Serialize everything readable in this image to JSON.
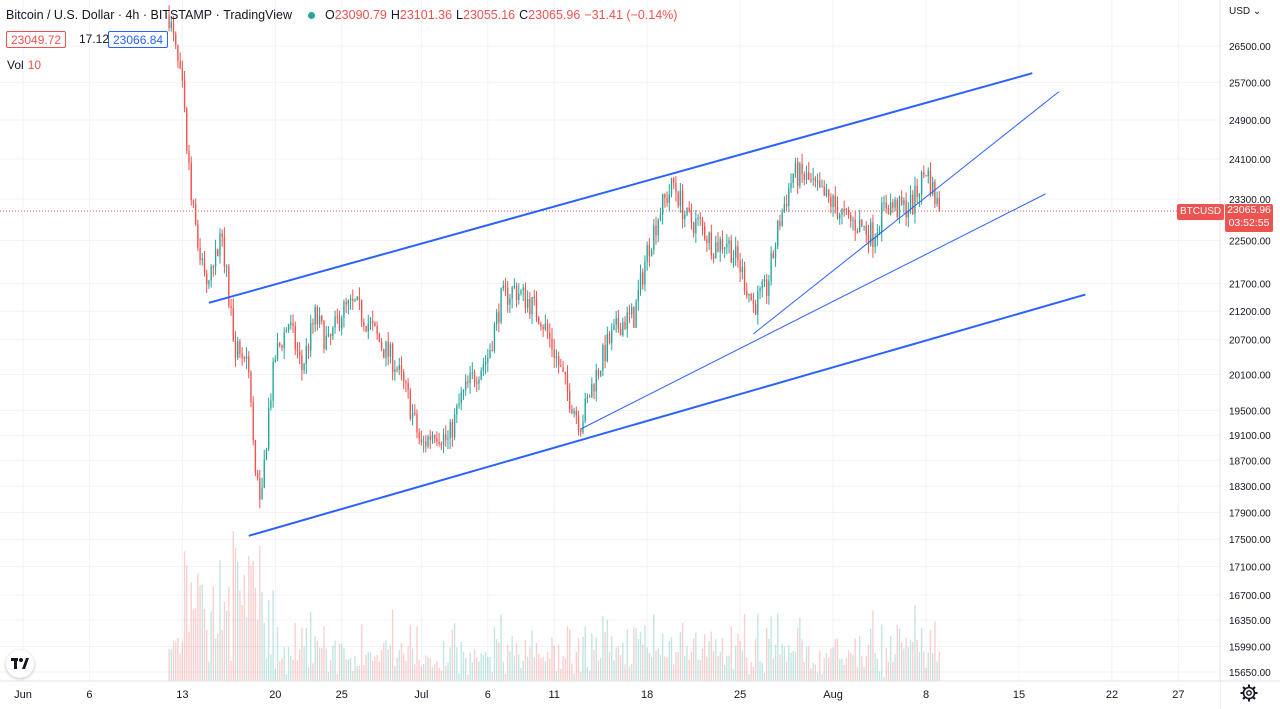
{
  "header": {
    "symbol": "Bitcoin / U.S. Dollar",
    "interval": "4h",
    "exchange": "BITSTAMP",
    "source": "TradingView",
    "ohlc": {
      "o_label": "O",
      "o": "23090.79",
      "h_label": "H",
      "h": "23101.36",
      "l_label": "L",
      "l": "23055.16",
      "c_label": "C",
      "c": "23065.96",
      "change": "−31.41 (−0.14%)"
    },
    "bid": "23049.72",
    "spread": "17.12",
    "ask": "23066.84",
    "volume_label": "Vol",
    "volume_value": "10"
  },
  "price_axis": {
    "currency": "USD",
    "currency_icon": "chevron-down-icon"
  },
  "last_price_tag": {
    "symbol": "BTCUSD",
    "price": "23065.96",
    "countdown": "03:52:55"
  },
  "colors": {
    "up": "#26a69a",
    "down": "#ef5350",
    "trendline": "#2962ff",
    "grid": "#f0f3fa",
    "axis_text": "#131722"
  },
  "chart_data": {
    "type": "candlestick",
    "title": "Bitcoin / U.S. Dollar · 4h · BITSTAMP",
    "x_ticks": [
      "Jun",
      "6",
      "13",
      "20",
      "25",
      "Jul",
      "6",
      "11",
      "18",
      "25",
      "Aug",
      "8",
      "15",
      "22",
      "27"
    ],
    "y_ticks": [
      26500,
      25700,
      24900,
      24100,
      23300,
      22500,
      21700,
      21200,
      20700,
      20100,
      19500,
      19100,
      18700,
      18300,
      17900,
      17500,
      17100,
      16700,
      16350,
      15990,
      15650
    ],
    "y_tick_labels": [
      "26500.00",
      "25700.00",
      "24900.00",
      "24100.00",
      "23300.00",
      "22500.00",
      "21700.00",
      "21200.00",
      "20700.00",
      "20100.00",
      "19500.00",
      "19100.00",
      "18700.00",
      "18300.00",
      "17900.00",
      "17500.00",
      "17100.00",
      "16700.00",
      "16350.00",
      "15990.00",
      "15650.00"
    ],
    "y_scale": "log",
    "ylim": [
      15450,
      27300
    ],
    "last_price": 23065.96,
    "grid": true,
    "price_path": [
      [
        "Jun 12",
        27200
      ],
      [
        "Jun 13",
        25500
      ],
      [
        "Jun 13 12:00",
        23800
      ],
      [
        "Jun 14",
        22600
      ],
      [
        "Jun 15",
        21600
      ],
      [
        "Jun 16",
        22700
      ],
      [
        "Jun 16 12:00",
        21400
      ],
      [
        "Jun 17",
        20600
      ],
      [
        "Jun 18",
        20300
      ],
      [
        "Jun 18 12:00",
        18400
      ],
      [
        "Jun 19",
        18200
      ],
      [
        "Jun 19 12:00",
        19500
      ],
      [
        "Jun 20",
        20400
      ],
      [
        "Jun 21",
        21000
      ],
      [
        "Jun 22",
        20200
      ],
      [
        "Jun 23",
        21100
      ],
      [
        "Jun 24",
        20600
      ],
      [
        "Jun 25",
        21200
      ],
      [
        "Jun 26",
        21300
      ],
      [
        "Jun 27",
        21000
      ],
      [
        "Jun 28",
        20600
      ],
      [
        "Jun 29",
        20300
      ],
      [
        "Jun 30",
        19700
      ],
      [
        "Jul 1",
        18900
      ],
      [
        "Jul 2",
        19200
      ],
      [
        "Jul 3",
        19000
      ],
      [
        "Jul 4",
        19700
      ],
      [
        "Jul 5",
        20100
      ],
      [
        "Jul 6",
        20400
      ],
      [
        "Jul 7",
        21400
      ],
      [
        "Jul 8",
        21600
      ],
      [
        "Jul 9",
        21400
      ],
      [
        "Jul 10",
        21100
      ],
      [
        "Jul 11",
        20500
      ],
      [
        "Jul 12",
        19800
      ],
      [
        "Jul 13",
        19300
      ],
      [
        "Jul 14",
        20000
      ],
      [
        "Jul 15",
        20600
      ],
      [
        "Jul 16",
        21000
      ],
      [
        "Jul 17",
        21100
      ],
      [
        "Jul 18",
        22300
      ],
      [
        "Jul 19",
        23100
      ],
      [
        "Jul 20",
        23600
      ],
      [
        "Jul 21",
        22900
      ],
      [
        "Jul 22",
        22800
      ],
      [
        "Jul 23",
        22400
      ],
      [
        "Jul 24",
        22500
      ],
      [
        "Jul 25",
        22000
      ],
      [
        "Jul 26",
        21300
      ],
      [
        "Jul 27",
        21600
      ],
      [
        "Jul 28",
        22900
      ],
      [
        "Jul 29",
        23800
      ],
      [
        "Jul 30",
        23700
      ],
      [
        "Jul 31",
        23400
      ],
      [
        "Aug 1",
        23200
      ],
      [
        "Aug 2",
        22900
      ],
      [
        "Aug 3",
        22800
      ],
      [
        "Aug 4",
        22600
      ],
      [
        "Aug 5",
        23200
      ],
      [
        "Aug 6",
        23100
      ],
      [
        "Aug 7",
        23200
      ],
      [
        "Aug 8",
        23900
      ],
      [
        "Aug 9",
        23066
      ]
    ],
    "annotations": [
      {
        "type": "trendline",
        "name": "upper-channel",
        "from": [
          "Jun 15",
          21350
        ],
        "to": [
          "Aug 16",
          25900
        ]
      },
      {
        "type": "trendline",
        "name": "lower-channel",
        "from": [
          "Jun 18",
          17550
        ],
        "to": [
          "Aug 20",
          21500
        ]
      },
      {
        "type": "trendline",
        "name": "support-steep",
        "from": [
          "Jul 26",
          20800
        ],
        "to": [
          "Aug 18",
          25500
        ]
      },
      {
        "type": "trendline",
        "name": "support-shallow",
        "from": [
          "Jul 13",
          19200
        ],
        "to": [
          "Aug 17",
          23400
        ]
      }
    ]
  }
}
